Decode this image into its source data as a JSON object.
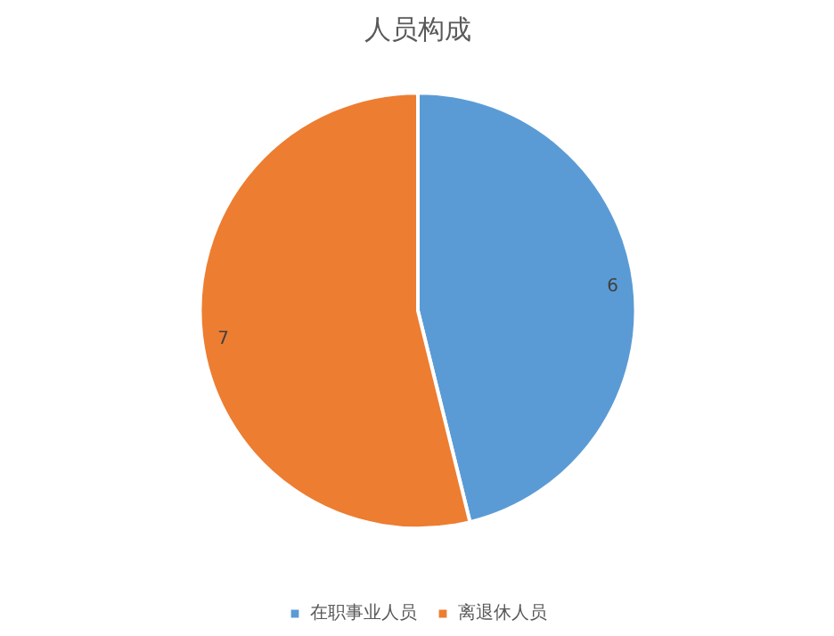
{
  "chart_data": {
    "type": "pie",
    "title": "人员构成",
    "categories": [
      "在职事业人员",
      "离退休人员"
    ],
    "values": [
      6,
      7
    ],
    "colors": [
      "#5b9bd5",
      "#ed7d31"
    ],
    "data_labels": true,
    "legend": "bottom"
  }
}
